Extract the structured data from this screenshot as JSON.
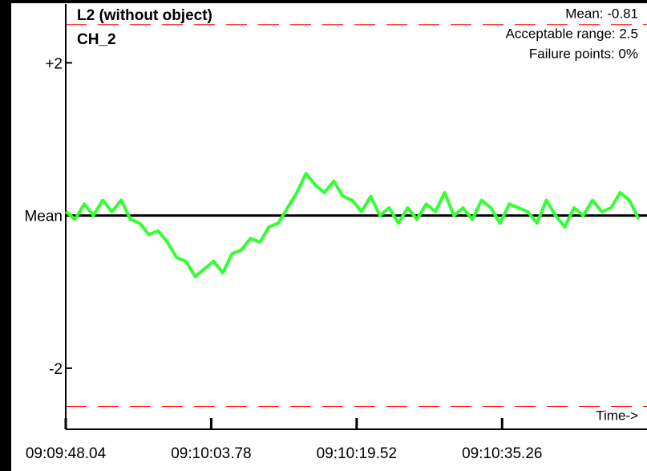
{
  "chart_data": {
    "type": "line",
    "title": "L2 (without object)",
    "subtitle": "CH_2",
    "annotations": [
      "Mean: -0.81",
      "Acceptable range: 2.5",
      "Failure points: 0%"
    ],
    "x_label": "Time->",
    "x": [
      0,
      1,
      2,
      3,
      4,
      5,
      6,
      7,
      8,
      9,
      10,
      11,
      12,
      13,
      14,
      15,
      16,
      17,
      18,
      19,
      20,
      21,
      22,
      23,
      24,
      25,
      26,
      27,
      28,
      29,
      30,
      31,
      32,
      33,
      34,
      35,
      36,
      37,
      38,
      39,
      40,
      41,
      42,
      43,
      44,
      45,
      46,
      47,
      48,
      49,
      50,
      51,
      52,
      53,
      54,
      55,
      56,
      57,
      58,
      59,
      60,
      61,
      62
    ],
    "series": [
      {
        "name": "CH_2",
        "color": "#33ff33",
        "values": [
          0.05,
          -0.05,
          0.15,
          0.0,
          0.2,
          0.05,
          0.2,
          -0.05,
          -0.1,
          -0.25,
          -0.2,
          -0.35,
          -0.55,
          -0.6,
          -0.8,
          -0.7,
          -0.6,
          -0.75,
          -0.5,
          -0.45,
          -0.3,
          -0.35,
          -0.15,
          -0.1,
          0.1,
          0.3,
          0.55,
          0.4,
          0.3,
          0.45,
          0.25,
          0.2,
          0.05,
          0.25,
          0.0,
          0.1,
          -0.1,
          0.1,
          -0.05,
          0.15,
          0.05,
          0.3,
          0.0,
          0.1,
          -0.05,
          0.2,
          0.1,
          -0.1,
          0.15,
          0.1,
          0.05,
          -0.1,
          0.2,
          0.0,
          -0.15,
          0.1,
          0.0,
          0.2,
          0.05,
          0.1,
          0.3,
          0.2,
          -0.05
        ]
      }
    ],
    "limits": [
      2.5,
      -2.5
    ],
    "limit_color": "#ff0000",
    "ylim": [
      -2.8,
      2.77
    ],
    "yticks": [
      {
        "value": 2,
        "label": "+2"
      },
      {
        "value": 0,
        "label": "Mean"
      },
      -2
    ],
    "xlim": [
      0,
      62.9
    ],
    "xticks": [
      {
        "value": 0,
        "label": "09:09:48.04"
      },
      {
        "value": 15.74,
        "label": "09:10:03.78"
      },
      {
        "value": 31.48,
        "label": "09:10:19.52"
      },
      {
        "value": 47.22,
        "label": "09:10:35.26"
      }
    ]
  }
}
